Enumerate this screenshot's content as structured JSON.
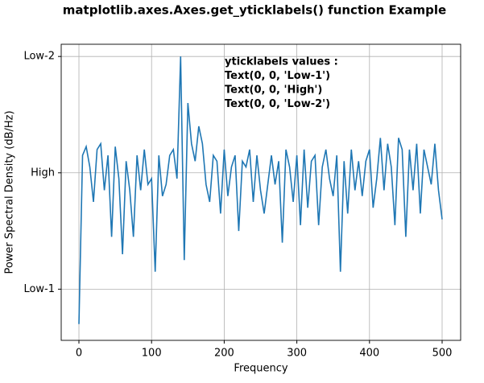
{
  "chart_data": {
    "type": "line",
    "title": "matplotlib.axes.Axes.get_yticklabels() function Example",
    "xlabel": "Frequency",
    "ylabel": "Power Spectral Density (dB/Hz)",
    "annotation": [
      "yticklabels values :",
      "Text(0, 0, 'Low-1')",
      "Text(0, 0, 'High')",
      "Text(0, 0, 'Low-2')"
    ],
    "x": [
      0,
      5,
      10,
      15,
      20,
      25,
      30,
      35,
      40,
      45,
      50,
      55,
      60,
      65,
      70,
      75,
      80,
      85,
      90,
      95,
      100,
      105,
      110,
      115,
      120,
      125,
      130,
      135,
      140,
      145,
      150,
      155,
      160,
      165,
      170,
      175,
      180,
      185,
      190,
      195,
      200,
      205,
      210,
      215,
      220,
      225,
      230,
      235,
      240,
      245,
      250,
      255,
      260,
      265,
      270,
      275,
      280,
      285,
      290,
      295,
      300,
      305,
      310,
      315,
      320,
      325,
      330,
      335,
      340,
      345,
      350,
      355,
      360,
      365,
      370,
      375,
      380,
      385,
      390,
      395,
      400,
      405,
      410,
      415,
      420,
      425,
      430,
      435,
      440,
      445,
      450,
      455,
      460,
      465,
      470,
      475,
      480,
      485,
      490,
      495,
      500
    ],
    "series": [
      {
        "color": "#1f77b4",
        "values": [
          -26,
          3,
          4.5,
          1,
          -5,
          4,
          5,
          -3,
          3,
          -11,
          4.5,
          -1,
          -14,
          2,
          -3,
          -11,
          3,
          -3,
          4,
          -2,
          -1,
          -17,
          3,
          -4,
          -2,
          3,
          4,
          -1,
          20,
          -15,
          12,
          5,
          2,
          8,
          5,
          -2,
          -5,
          3,
          2,
          -7,
          4,
          -4,
          1,
          3,
          -10,
          2,
          1,
          4,
          -5,
          3,
          -3,
          -7,
          -2,
          3,
          -2,
          2,
          -12,
          4,
          1,
          -5,
          3,
          -9,
          4,
          -6,
          2,
          3,
          -9,
          1,
          4,
          -1,
          -4,
          3,
          -17,
          2,
          -7,
          4,
          -3,
          2,
          -4,
          2,
          4,
          -6,
          -1,
          6,
          -3,
          5,
          1,
          -9,
          6,
          4,
          -11,
          4,
          -3,
          5,
          -7,
          4,
          1,
          -2,
          5,
          -3,
          -8
        ]
      }
    ],
    "xlim": [
      -24.4,
      525.5
    ],
    "xticks": [
      0,
      100,
      200,
      300,
      400,
      500
    ],
    "ylim": [
      -28.8,
      22.1
    ],
    "yticks": [
      {
        "value": -20,
        "label": "Low-1"
      },
      {
        "value": 0,
        "label": "High"
      },
      {
        "value": 20,
        "label": "Low-2"
      }
    ],
    "grid": true
  }
}
